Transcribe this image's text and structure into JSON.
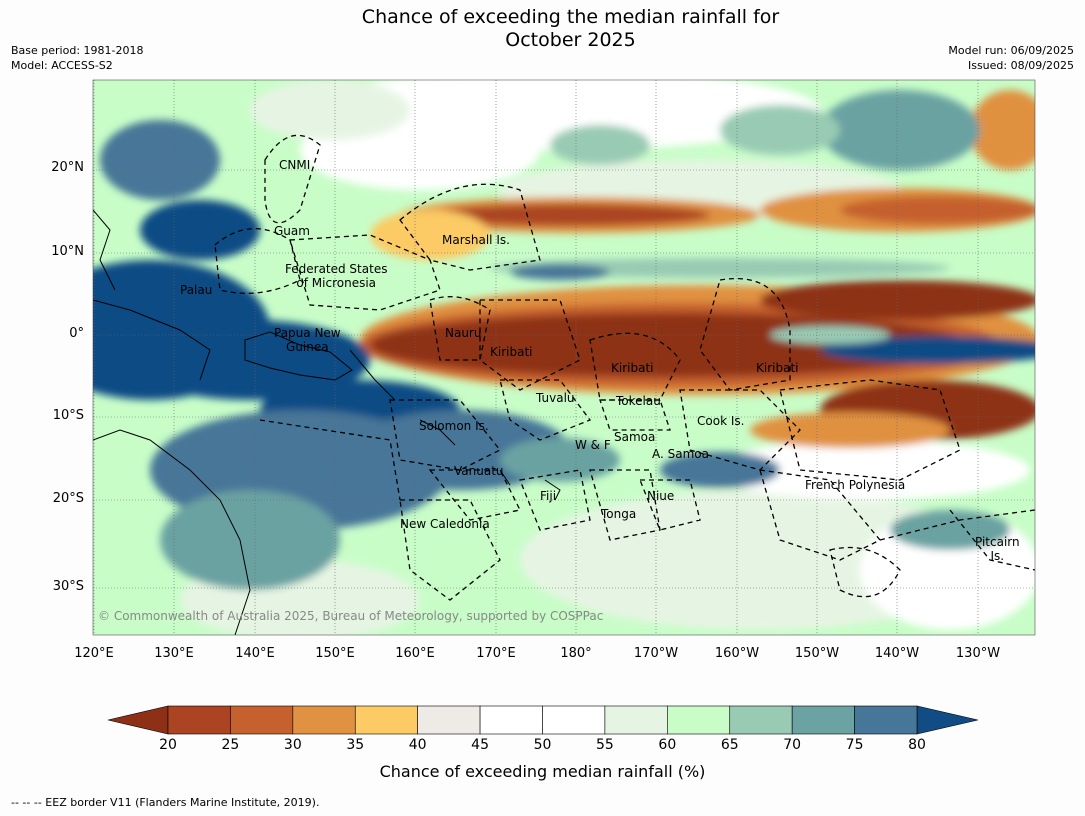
{
  "header": {
    "title_line1": "Chance of exceeding the median rainfall for",
    "title_line2": "October 2025",
    "base_period": "Base period: 1981-2018",
    "model": "Model: ACCESS-S2",
    "model_run": "Model run: 06/09/2025",
    "issued": "Issued: 08/09/2025"
  },
  "axes": {
    "lat_labels": [
      "20°N",
      "10°N",
      "0°",
      "10°S",
      "20°S",
      "30°S"
    ],
    "lon_labels": [
      "120°E",
      "130°E",
      "140°E",
      "150°E",
      "160°E",
      "170°E",
      "180°",
      "170°W",
      "160°W",
      "150°W",
      "140°W",
      "130°W"
    ]
  },
  "places": {
    "cnmi": "CNMI",
    "guam": "Guam",
    "marshall": "Marshall Is.",
    "fsm_line1": "Federated States",
    "fsm_line2": "of Micronesia",
    "palau": "Palau",
    "png_line1": "Papua New",
    "png_line2": "Guinea",
    "nauru": "Nauru",
    "kiribati_w": "Kiribati",
    "kiribati_c": "Kiribati",
    "kiribati_e": "Kiribati",
    "tuvalu": "Tuvalu",
    "tokelau": "Tokelau",
    "cook": "Cook Is.",
    "solomon": "Solomon Is.",
    "samoa": "Samoa",
    "wf": "W & F",
    "am_samoa": "A. Samoa",
    "vanuatu": "Vanuatu",
    "fiji": "Fiji",
    "niue": "Niue",
    "tonga": "Tonga",
    "new_caledonia": "New Caledonia",
    "french_polynesia": "French Polynesia",
    "pitcairn_line1": "Pitcairn",
    "pitcairn_line2": "Is."
  },
  "copyright": "© Commonwealth of Australia 2025, Bureau of Meteorology, supported by COSPPac",
  "colorbar": {
    "title": "Chance of exceeding median rainfall (%)",
    "ticks": [
      "20",
      "25",
      "30",
      "35",
      "40",
      "45",
      "50",
      "55",
      "60",
      "65",
      "70",
      "75",
      "80"
    ],
    "colors": [
      "#8e3016",
      "#ab4423",
      "#c5612e",
      "#e09141",
      "#fccb65",
      "#eeebe6",
      "#ffffff",
      "#ffffff",
      "#e6f5e3",
      "#c8fdc8",
      "#99cbb4",
      "#6ba2a2",
      "#467698",
      "#114c85"
    ]
  },
  "footnote": "--  --  -- EEZ border V11 (Flanders Marine Institute, 2019)."
}
